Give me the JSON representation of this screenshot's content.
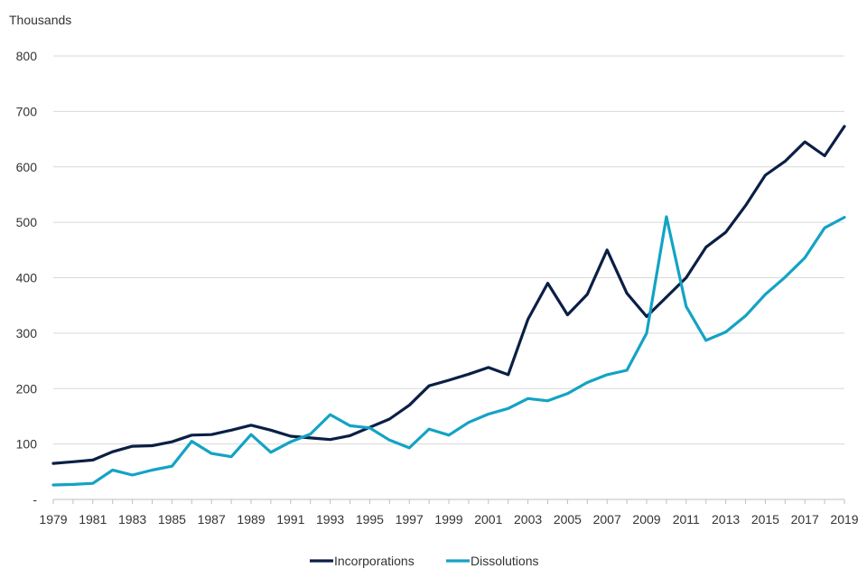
{
  "chart_data": {
    "type": "line",
    "unit_label": "Thousands",
    "x": [
      1979,
      1980,
      1981,
      1982,
      1983,
      1984,
      1985,
      1986,
      1987,
      1988,
      1989,
      1990,
      1991,
      1992,
      1993,
      1994,
      1995,
      1996,
      1997,
      1998,
      1999,
      2000,
      2001,
      2002,
      2003,
      2004,
      2005,
      2006,
      2007,
      2008,
      2009,
      2010,
      2011,
      2012,
      2013,
      2014,
      2015,
      2016,
      2017,
      2018,
      2019
    ],
    "x_tick_labels": [
      "1979",
      "1981",
      "1983",
      "1985",
      "1987",
      "1989",
      "1991",
      "1993",
      "1995",
      "1997",
      "1999",
      "2001",
      "2003",
      "2005",
      "2007",
      "2009",
      "2011",
      "2013",
      "2015",
      "2017",
      "2019"
    ],
    "y_tick_labels": [
      "-",
      "100",
      "200",
      "300",
      "400",
      "500",
      "600",
      "700",
      "800"
    ],
    "ylim": [
      0,
      800
    ],
    "grid": "horizontal",
    "legend_position": "bottom",
    "series": [
      {
        "name": "Incorporations",
        "color": "#0b1f45",
        "values": [
          65,
          68,
          71,
          86,
          96,
          97,
          104,
          116,
          117,
          125,
          134,
          125,
          114,
          111,
          108,
          115,
          130,
          145,
          170,
          205,
          215,
          226,
          238,
          225,
          325,
          390,
          333,
          370,
          450,
          372,
          330,
          365,
          400,
          455,
          482,
          530,
          585,
          610,
          645,
          620,
          673
        ]
      },
      {
        "name": "Dissolutions",
        "color": "#13a3c4",
        "values": [
          26,
          27,
          29,
          53,
          44,
          53,
          60,
          105,
          83,
          77,
          117,
          85,
          104,
          118,
          153,
          133,
          129,
          107,
          93,
          127,
          116,
          139,
          154,
          164,
          182,
          178,
          191,
          211,
          225,
          233,
          300,
          510,
          348,
          287,
          302,
          331,
          370,
          401,
          436,
          490,
          509
        ]
      }
    ]
  }
}
